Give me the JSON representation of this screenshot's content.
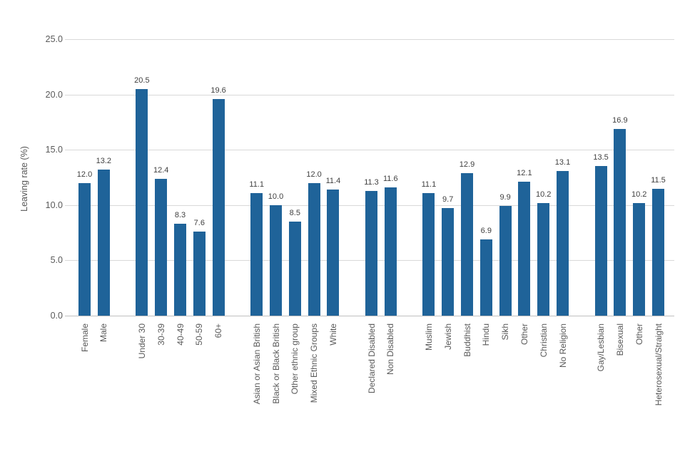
{
  "chart_data": {
    "type": "bar",
    "ylabel": "Leaving rate (%)",
    "ylim": [
      0,
      25
    ],
    "ytick_step": 5,
    "yticks": [
      "0.0",
      "5.0",
      "10.0",
      "15.0",
      "20.0",
      "25.0"
    ],
    "grid": true,
    "legend": false,
    "value_labels_shown": true,
    "x_tick_rotation": 90,
    "bar_color": "#1f6399",
    "value_label_color": "#404040",
    "axis_label_color": "#595959",
    "gridline_color": "#d9d9d9",
    "axis_line_color": "#bfbfbf",
    "groups": [
      {
        "categories": [
          "Female",
          "Male"
        ],
        "values": [
          12.0,
          13.2
        ]
      },
      {
        "categories": [
          "Under 30",
          "30-39",
          "40-49",
          "50-59",
          "60+"
        ],
        "values": [
          20.5,
          12.4,
          8.3,
          7.6,
          19.6
        ]
      },
      {
        "categories": [
          "Asian or Asian British",
          "Black or Black British",
          "Other ethnic group",
          "Mixed Ethnic Groups",
          "White"
        ],
        "values": [
          11.1,
          10.0,
          8.5,
          12.0,
          11.4
        ]
      },
      {
        "categories": [
          "Declared Disabled",
          "Non Disabled"
        ],
        "values": [
          11.3,
          11.6
        ]
      },
      {
        "categories": [
          "Muslim",
          "Jewish",
          "Buddhist",
          "Hindu",
          "Sikh",
          "Other",
          "Christian",
          "No Religion"
        ],
        "values": [
          11.1,
          9.7,
          12.9,
          6.9,
          9.9,
          12.1,
          10.2,
          13.1
        ]
      },
      {
        "categories": [
          "Gay/Lesbian",
          "Bisexual",
          "Other",
          "Heterosexual/Straight"
        ],
        "values": [
          13.5,
          16.9,
          10.2,
          11.5
        ]
      }
    ]
  }
}
